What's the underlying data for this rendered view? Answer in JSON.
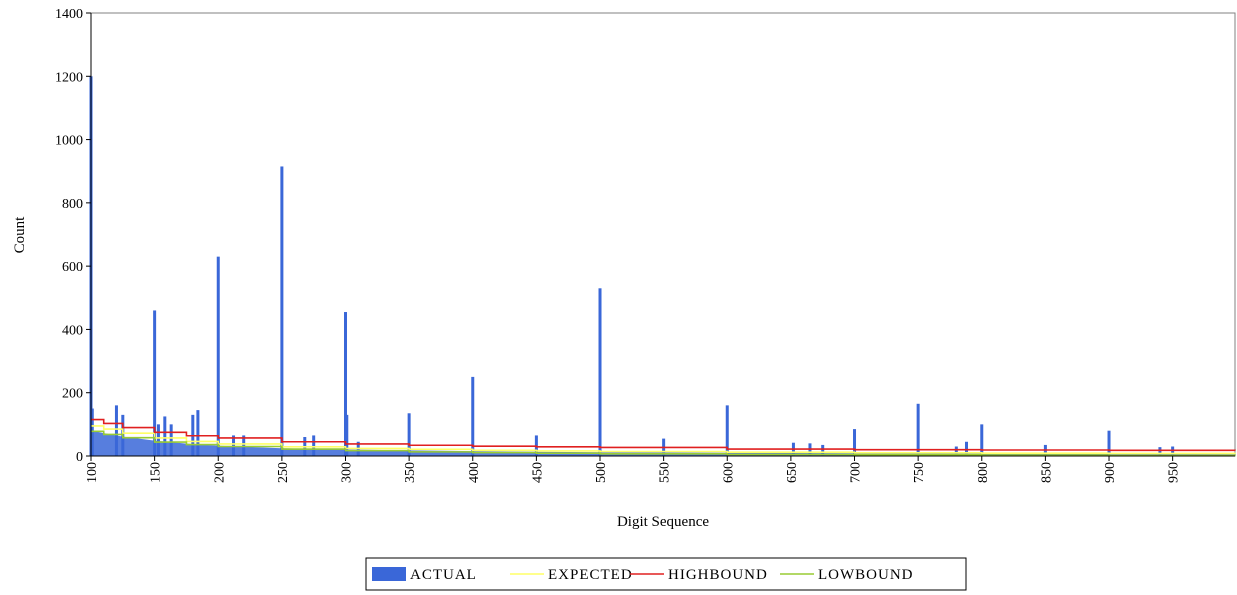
{
  "chart_data": {
    "type": "bar",
    "xlabel": "Digit Sequence",
    "ylabel": "Count",
    "xlim": [
      100,
      999
    ],
    "ylim": [
      0,
      1400
    ],
    "x_ticks": [
      100,
      150,
      200,
      250,
      300,
      350,
      400,
      450,
      500,
      550,
      600,
      650,
      700,
      750,
      800,
      850,
      900,
      950
    ],
    "y_ticks": [
      0,
      200,
      400,
      600,
      800,
      1000,
      1200,
      1400
    ],
    "grid": false,
    "legend_position": "bottom",
    "legend": [
      "ACTUAL",
      "EXPECTED",
      "HIGHBOUND",
      "LOWBOUND"
    ],
    "series": [
      {
        "name": "ACTUAL",
        "kind": "bar",
        "color": "#3a67d8",
        "x": [
          100,
          101,
          120,
          125,
          150,
          153,
          158,
          163,
          180,
          184,
          200,
          212,
          220,
          250,
          268,
          275,
          300,
          301,
          310,
          350,
          400,
          450,
          500,
          550,
          600,
          652,
          665,
          675,
          700,
          750,
          780,
          788,
          800,
          850,
          900,
          940,
          950
        ],
        "values": [
          1200,
          150,
          160,
          130,
          460,
          100,
          125,
          100,
          130,
          145,
          630,
          65,
          65,
          915,
          60,
          65,
          455,
          130,
          45,
          135,
          250,
          65,
          530,
          55,
          160,
          42,
          40,
          35,
          85,
          165,
          30,
          45,
          100,
          35,
          80,
          28,
          30
        ]
      },
      {
        "name": "EXPECTED",
        "kind": "line",
        "color": "#ffff66",
        "x": [
          100,
          110,
          125,
          150,
          175,
          200,
          250,
          300,
          350,
          400,
          450,
          500,
          600,
          700,
          800,
          900,
          999
        ],
        "values": [
          95,
          85,
          72,
          57,
          46,
          38,
          29,
          24,
          21,
          18,
          16,
          14,
          12,
          10,
          9,
          8,
          7
        ]
      },
      {
        "name": "HIGHBOUND",
        "kind": "line",
        "color": "#e02020",
        "x": [
          100,
          110,
          125,
          150,
          175,
          200,
          250,
          300,
          350,
          400,
          450,
          500,
          600,
          700,
          800,
          900,
          999
        ],
        "values": [
          115,
          103,
          90,
          75,
          64,
          57,
          45,
          38,
          34,
          31,
          29,
          27,
          22,
          20,
          19,
          18,
          17
        ]
      },
      {
        "name": "LOWBOUND",
        "kind": "line",
        "color": "#99cc33",
        "x": [
          100,
          110,
          125,
          150,
          175,
          200,
          250,
          300,
          350,
          400,
          450,
          500,
          600,
          700,
          800,
          900,
          999
        ],
        "values": [
          78,
          68,
          58,
          44,
          36,
          30,
          22,
          17,
          13,
          11,
          9,
          7,
          5,
          4,
          3,
          2,
          1
        ]
      }
    ]
  }
}
